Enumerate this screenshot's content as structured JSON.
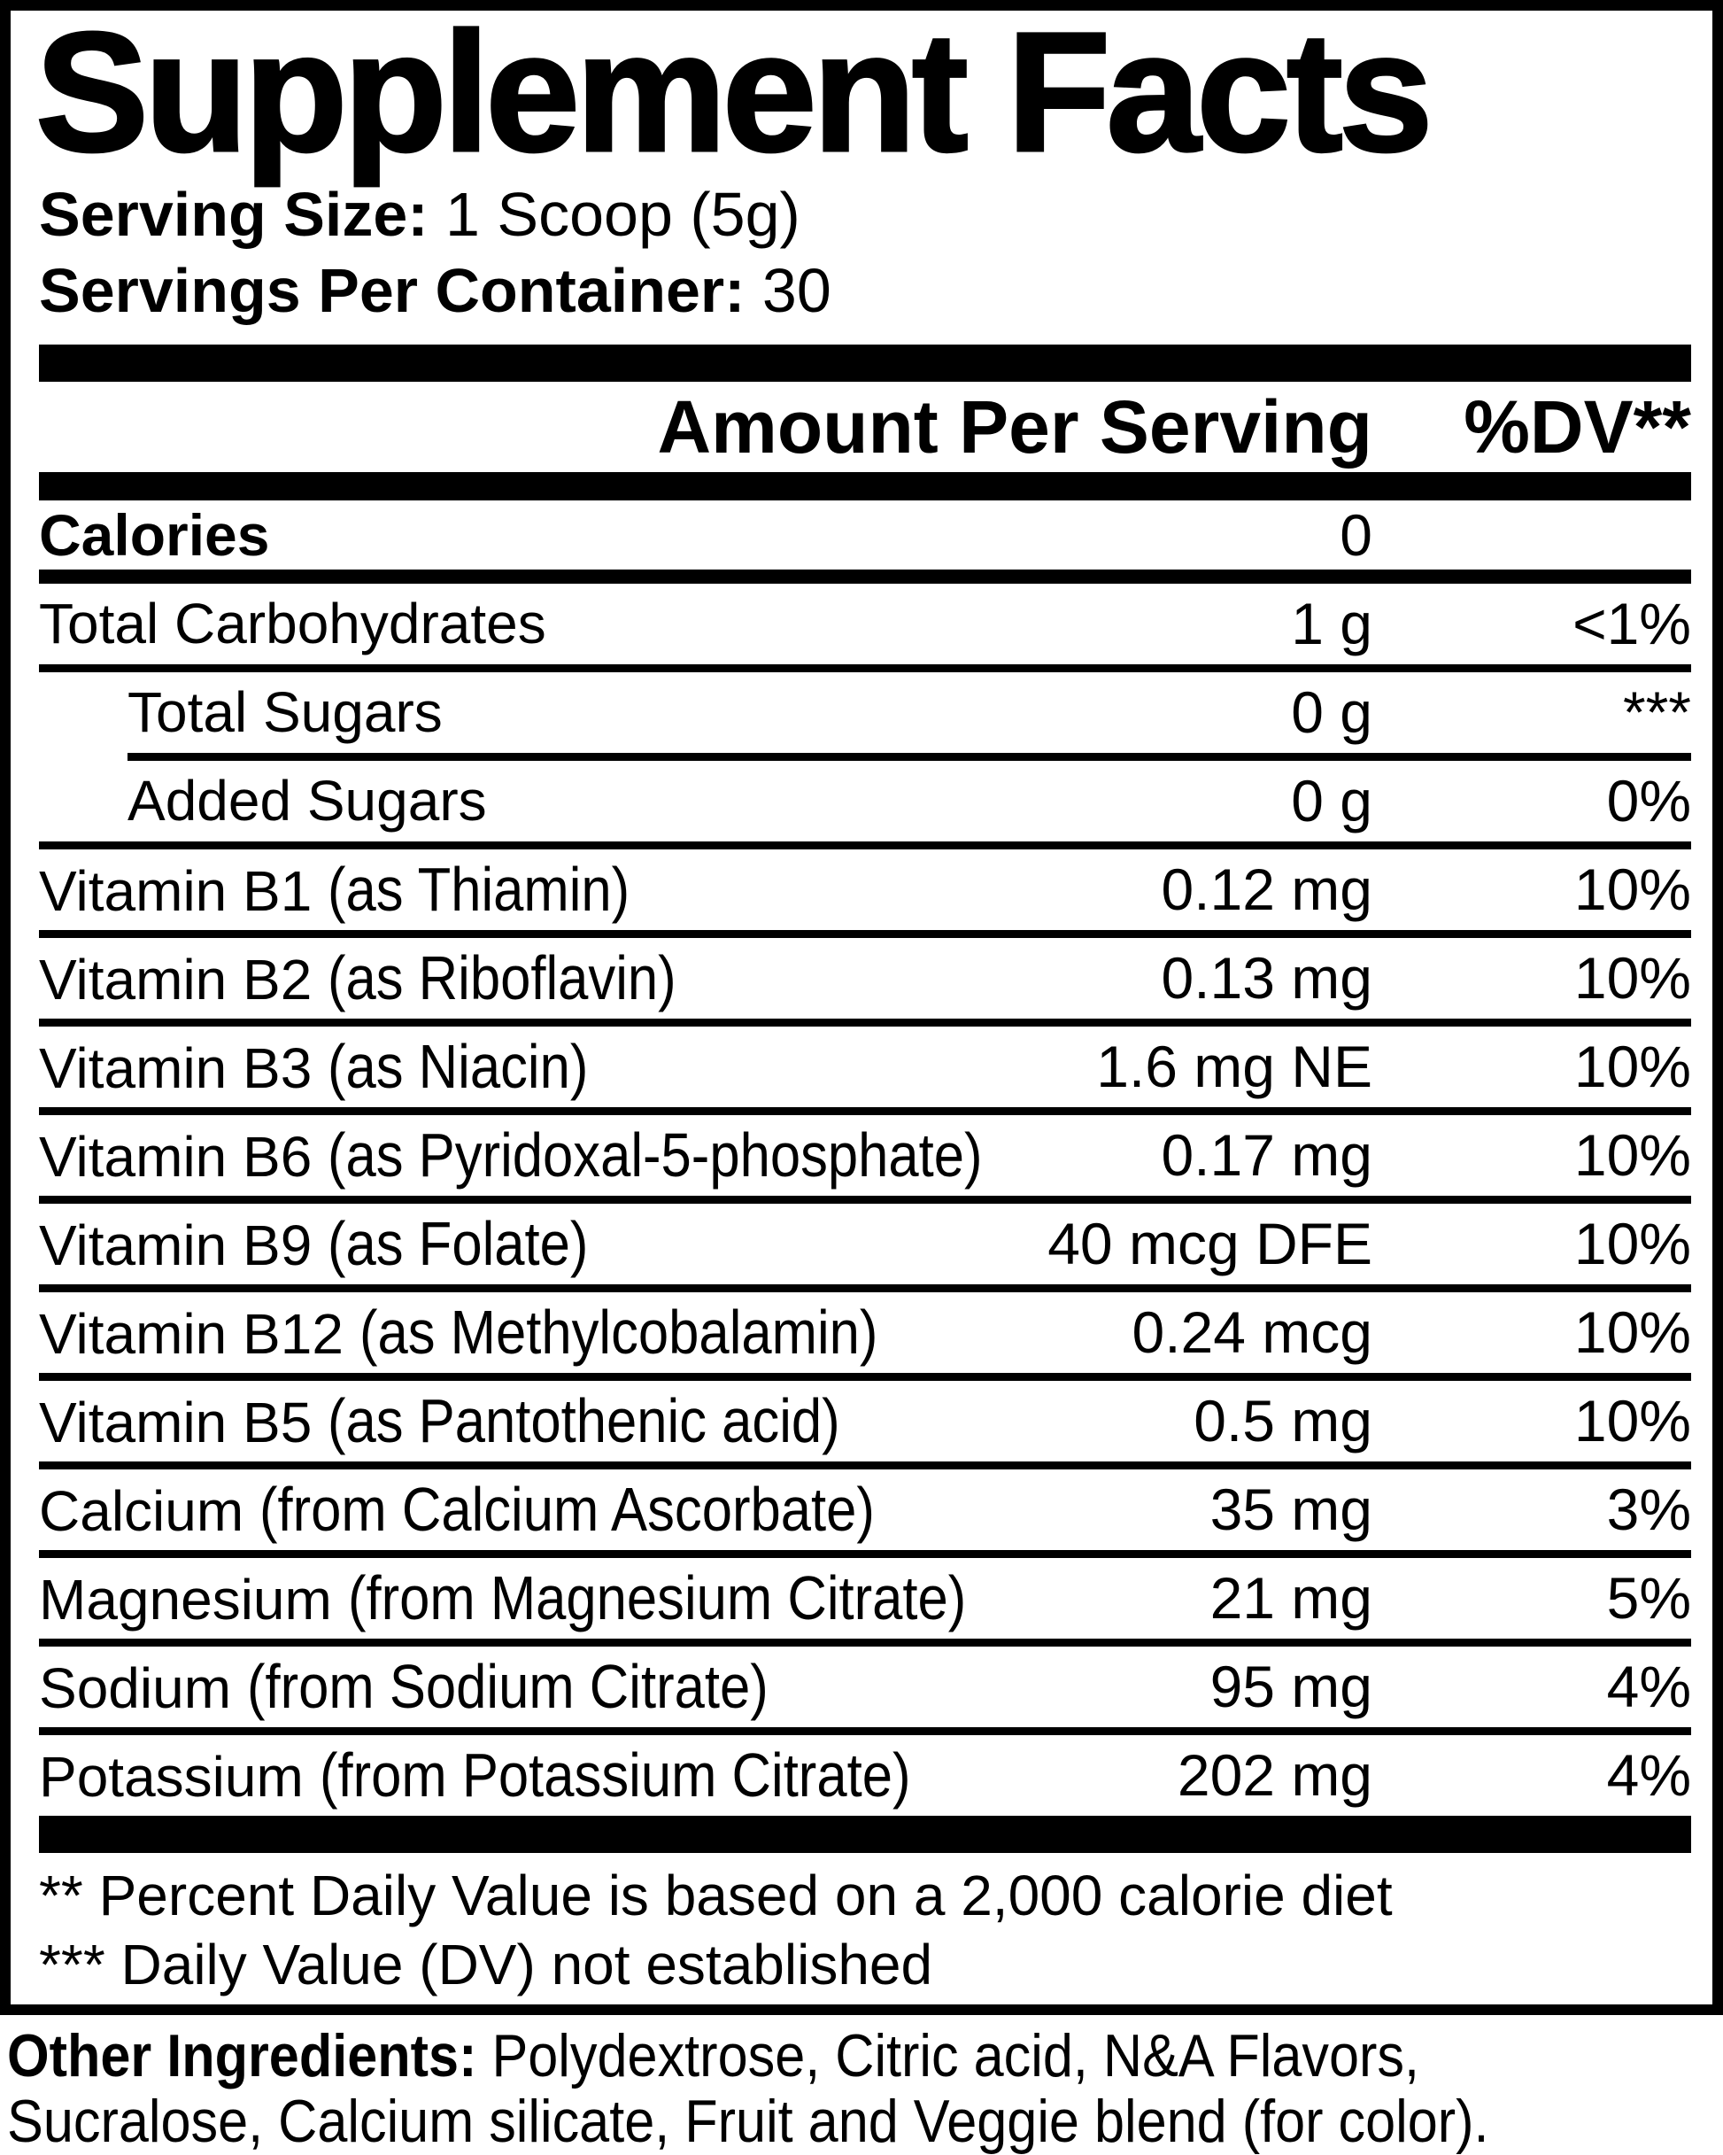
{
  "colors": {
    "text": "#000000",
    "background": "#ffffff"
  },
  "title": "Supplement Facts",
  "serving": {
    "size_label": "Serving Size:",
    "size_value": "1 Scoop (5g)",
    "count_label": "Servings Per Container:",
    "count_value": "30"
  },
  "table": {
    "amount_header": "Amount Per Serving",
    "dv_header": "%DV**",
    "rows": [
      {
        "name": "Calories",
        "detail": "",
        "amount": "0",
        "dv": "",
        "bold": true,
        "indent": false,
        "divider_after": "medium"
      },
      {
        "name": "Total Carbohydrates",
        "detail": "",
        "amount": "1 g",
        "dv": "<1%",
        "bold": false,
        "indent": false,
        "divider_after": "full"
      },
      {
        "name": "Total Sugars",
        "detail": "",
        "amount": "0 g",
        "dv": "***",
        "bold": false,
        "indent": true,
        "divider_after": "indent"
      },
      {
        "name": "Added Sugars",
        "detail": "",
        "amount": "0 g",
        "dv": "0%",
        "bold": false,
        "indent": true,
        "divider_after": "full"
      },
      {
        "name": "Vitamin B1",
        "detail": "(as Thiamin)",
        "amount": "0.12 mg",
        "dv": "10%",
        "bold": false,
        "indent": false,
        "divider_after": "full"
      },
      {
        "name": "Vitamin B2",
        "detail": "(as Riboflavin)",
        "amount": "0.13 mg",
        "dv": "10%",
        "bold": false,
        "indent": false,
        "divider_after": "full"
      },
      {
        "name": "Vitamin B3",
        "detail": "(as Niacin)",
        "amount": "1.6 mg NE",
        "dv": "10%",
        "bold": false,
        "indent": false,
        "divider_after": "full"
      },
      {
        "name": "Vitamin B6",
        "detail": "(as Pyridoxal-5-phosphate)",
        "amount": "0.17 mg",
        "dv": "10%",
        "bold": false,
        "indent": false,
        "divider_after": "full"
      },
      {
        "name": "Vitamin B9",
        "detail": "(as Folate)",
        "amount": "40 mcg DFE",
        "dv": "10%",
        "bold": false,
        "indent": false,
        "divider_after": "full"
      },
      {
        "name": "Vitamin B12",
        "detail": "(as Methylcobalamin)",
        "amount": "0.24 mcg",
        "dv": "10%",
        "bold": false,
        "indent": false,
        "divider_after": "full"
      },
      {
        "name": "Vitamin B5",
        "detail": "(as Pantothenic acid)",
        "amount": "0.5 mg",
        "dv": "10%",
        "bold": false,
        "indent": false,
        "divider_after": "full"
      },
      {
        "name": "Calcium",
        "detail": "(from Calcium Ascorbate)",
        "amount": "35 mg",
        "dv": "3%",
        "bold": false,
        "indent": false,
        "divider_after": "full"
      },
      {
        "name": "Magnesium",
        "detail": "(from Magnesium Citrate)",
        "amount": "21 mg",
        "dv": "5%",
        "bold": false,
        "indent": false,
        "divider_after": "full"
      },
      {
        "name": "Sodium",
        "detail": "(from Sodium Citrate)",
        "amount": "95 mg",
        "dv": "4%",
        "bold": false,
        "indent": false,
        "divider_after": "full"
      },
      {
        "name": "Potassium",
        "detail": "(from Potassium Citrate)",
        "amount": "202 mg",
        "dv": "4%",
        "bold": false,
        "indent": false,
        "divider_after": "none"
      }
    ]
  },
  "footnotes": [
    "** Percent Daily Value is based on a 2,000 calorie diet",
    "*** Daily Value (DV) not established"
  ],
  "other_ingredients": {
    "label": "Other Ingredients:",
    "line1_rest": " Polydextrose, Citric acid, N&A Flavors,",
    "line2": "Sucralose, Calcium silicate, Fruit and Veggie blend (for color)."
  }
}
